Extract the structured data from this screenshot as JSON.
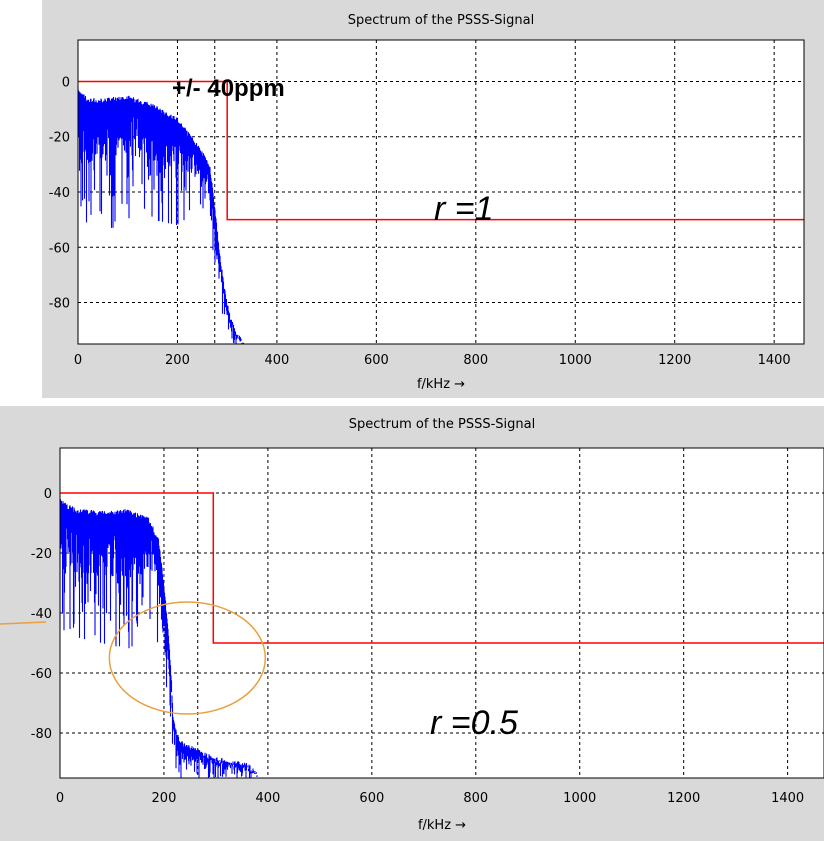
{
  "chart_data": [
    {
      "type": "line",
      "title": "Spectrum of the PSSS-Signal",
      "xlabel": "f/kHz →",
      "ylabel": "",
      "xlim": [
        0,
        1460
      ],
      "ylim": [
        -95,
        15
      ],
      "xticks": [
        0,
        200,
        400,
        600,
        800,
        1000,
        1200,
        1400
      ],
      "xtick_labels": [
        "0",
        "200",
        "400",
        "600",
        "800",
        "1000",
        "1200",
        "1400"
      ],
      "yticks": [
        0,
        -20,
        -40,
        -60,
        -80
      ],
      "ytick_labels": [
        "0",
        "-20",
        "-40",
        "-60",
        "-80"
      ],
      "grid": true,
      "marker_line_x": 275,
      "series": [
        {
          "role": "spectrum",
          "color": "#0000ff",
          "x": [
            0,
            20,
            50,
            100,
            150,
            200,
            230,
            250,
            265,
            275,
            285,
            295,
            305,
            315,
            325,
            335
          ],
          "upper": [
            -2,
            -6,
            -6,
            -5,
            -8,
            -13,
            -20,
            -25,
            -30,
            -45,
            -62,
            -75,
            -84,
            -89,
            -92,
            -95
          ],
          "lower": [
            -45,
            -52,
            -55,
            -50,
            -50,
            -52,
            -48,
            -45,
            -55,
            -68,
            -80,
            -88,
            -93,
            -95,
            -95,
            -95
          ]
        },
        {
          "role": "mask",
          "color": "#ff0000",
          "x": [
            0,
            300,
            300,
            1460
          ],
          "y": [
            0,
            0,
            -50,
            -50
          ]
        }
      ],
      "annotations": [
        {
          "text": "+/- 40ppm",
          "x": 180,
          "y": -1,
          "style": "bold"
        },
        {
          "text": "r =1",
          "x": 720,
          "y": -41,
          "style": "italic"
        }
      ]
    },
    {
      "type": "line",
      "title": "Spectrum of the PSSS-Signal",
      "xlabel": "f/kHz →",
      "ylabel": "",
      "xlim": [
        0,
        1470
      ],
      "ylim": [
        -95,
        15
      ],
      "xticks": [
        0,
        200,
        400,
        600,
        800,
        1000,
        1200,
        1400
      ],
      "xtick_labels": [
        "0",
        "200",
        "400",
        "600",
        "800",
        "1000",
        "1200",
        "1400"
      ],
      "yticks": [
        0,
        -20,
        -40,
        -60,
        -80
      ],
      "ytick_labels": [
        "0",
        "-20",
        "-40",
        "-60",
        "-80"
      ],
      "grid": true,
      "marker_line_x": 265,
      "series": [
        {
          "role": "spectrum",
          "color": "#0000ff",
          "x": [
            0,
            30,
            80,
            130,
            170,
            190,
            200,
            208,
            214,
            218,
            222,
            230,
            260,
            300,
            360,
            380
          ],
          "upper": [
            -2,
            -5,
            -6,
            -5,
            -8,
            -15,
            -30,
            -45,
            -60,
            -75,
            -78,
            -82,
            -85,
            -88,
            -90,
            -93
          ],
          "lower": [
            -45,
            -48,
            -50,
            -52,
            -48,
            -50,
            -60,
            -68,
            -80,
            -90,
            -93,
            -95,
            -95,
            -95,
            -95,
            -95
          ]
        },
        {
          "role": "mask",
          "color": "#ff0000",
          "x": [
            0,
            295,
            295,
            1470
          ],
          "y": [
            0,
            0,
            -50,
            -50
          ]
        }
      ],
      "annotations": [
        {
          "text": "r =0.5",
          "x": 705,
          "y": -83,
          "style": "italic"
        }
      ],
      "highlight_ellipse": {
        "cx": 245,
        "cy": -55,
        "rx": 100,
        "ry": 20,
        "color": "#e8a040"
      }
    }
  ]
}
